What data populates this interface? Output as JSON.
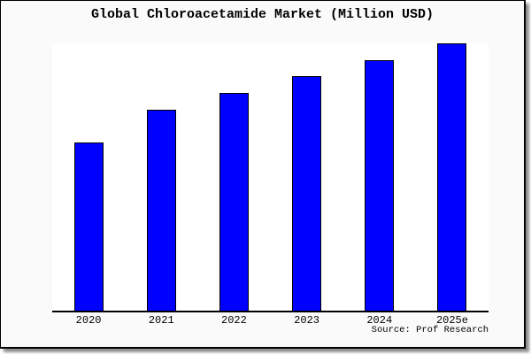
{
  "figure": {
    "title": "Global Chloroacetamide Market (Million USD)",
    "source_note": "Source: Prof Research"
  },
  "colors": {
    "bar_fill": "#0000ff",
    "bar_border": "#000000",
    "figure_background": "#fafafa",
    "plot_background": "#ffffff",
    "frame_border": "#000000",
    "axis_line": "#000000",
    "text": "#000000",
    "outer_background": "#ffffff"
  },
  "chart_data": {
    "type": "bar",
    "title": "Global Chloroacetamide Market (Million USD)",
    "categories": [
      "2020",
      "2021",
      "2022",
      "2023",
      "2024",
      "2025e"
    ],
    "values": [
      62.8,
      75.2,
      81.4,
      87.7,
      93.7,
      100
    ],
    "value_scale": "percent of tallest bar (2025e); chart shows no numeric y-axis",
    "xlabel": "",
    "ylabel": "",
    "ylim": [
      0,
      100
    ],
    "grid": false,
    "legend": false,
    "y_axis_visible": false,
    "x_axis_line_visible": true,
    "bar_order": "ascending left to right"
  }
}
